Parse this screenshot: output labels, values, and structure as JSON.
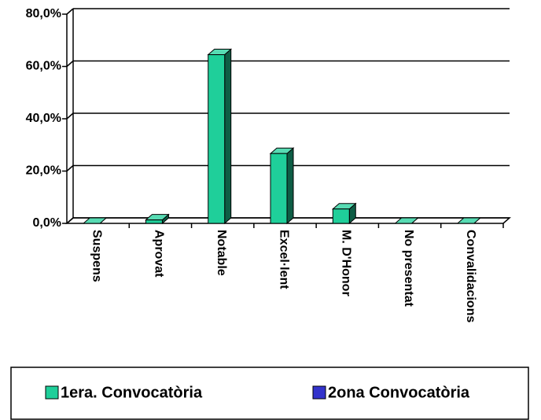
{
  "chart_data": {
    "type": "bar3d",
    "categories": [
      "Suspens",
      "Aprovat",
      "Notable",
      "Excel·lent",
      "M. D'Honor",
      "No presentat",
      "Convalidacions"
    ],
    "series": [
      {
        "name": "1era. Convocatòria",
        "color": "#1fcf9a",
        "values": [
          0,
          1.3,
          64.5,
          26.7,
          5.5,
          0,
          0
        ]
      },
      {
        "name": "2ona Convocatòria",
        "color": "#3333cc",
        "values": [
          null,
          null,
          null,
          null,
          null,
          null,
          null
        ]
      }
    ],
    "ylim": [
      0,
      80
    ],
    "yticks": [
      {
        "value": 0,
        "label": "0,0%"
      },
      {
        "value": 20,
        "label": "20,0%"
      },
      {
        "value": 40,
        "label": "40,0%"
      },
      {
        "value": 60,
        "label": "60,0%"
      },
      {
        "value": 80,
        "label": "80,0%"
      }
    ],
    "grid": true,
    "legend": "bottom"
  }
}
